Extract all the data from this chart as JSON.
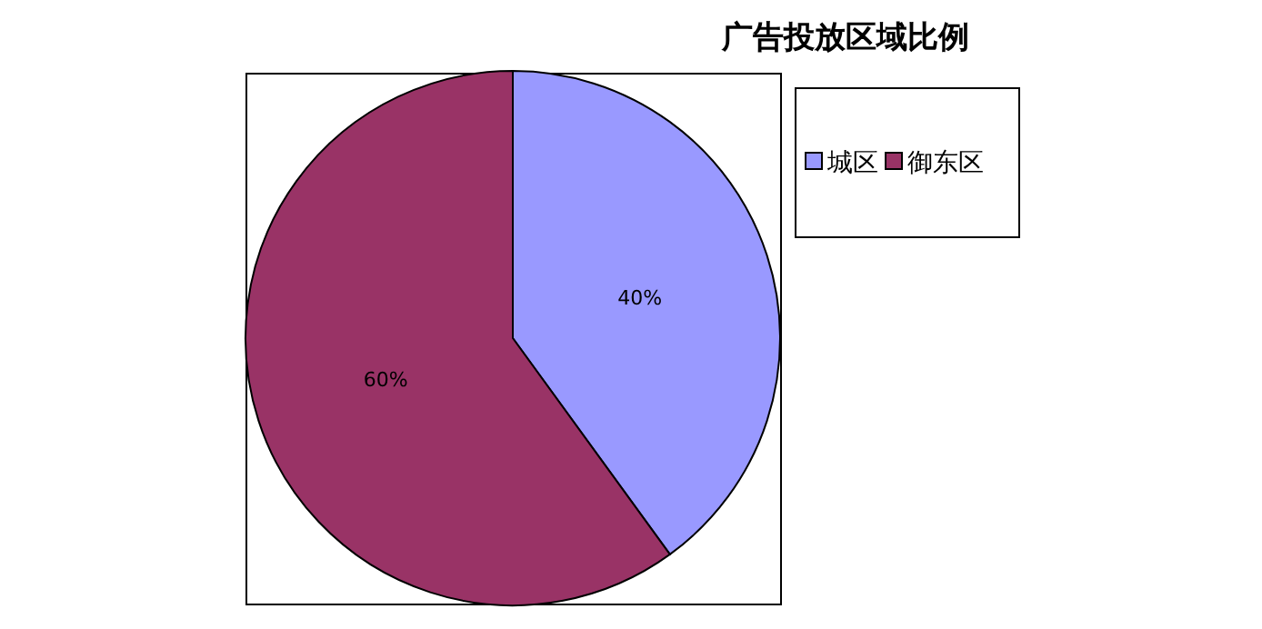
{
  "chart_data": {
    "type": "pie",
    "title": "广告投放区域比例",
    "categories": [
      "城区",
      "御东区"
    ],
    "values": [
      40,
      60
    ],
    "colors": [
      "#9999ff",
      "#993366"
    ],
    "value_labels": [
      "40%",
      "60%"
    ],
    "legend": "top right"
  }
}
